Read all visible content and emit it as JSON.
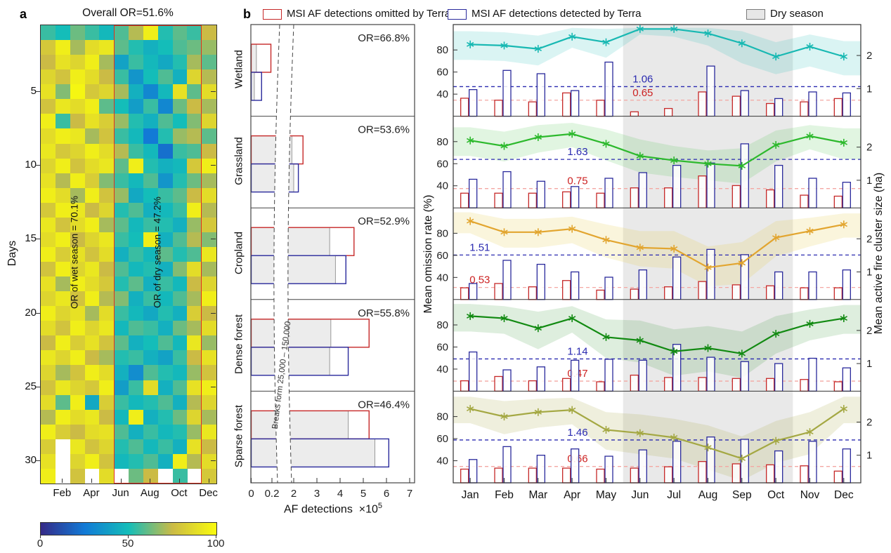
{
  "page": {
    "panel_a_label": "a",
    "panel_b_label": "b"
  },
  "legend": {
    "items": [
      {
        "label": "MSI AF detections omitted by Terra",
        "stroke": "#c62828",
        "fill": "#ffffff"
      },
      {
        "label": "MSI AF detections detected by Terra",
        "stroke": "#2a2a9c",
        "fill": "#ffffff"
      },
      {
        "label": "Dry season",
        "stroke": "#7a7a7a",
        "fill": "#e7e7e7"
      }
    ]
  },
  "chart_data": [
    {
      "id": "panel-a-daily-omission-heatmap",
      "type": "heatmap",
      "title": "Overall OR=51.6%",
      "ylabel": "Days",
      "yticks": [
        5,
        10,
        15,
        20,
        25,
        30
      ],
      "xtick_labels": [
        "Feb",
        "Apr",
        "Jun",
        "Aug",
        "Oct",
        "Dec"
      ],
      "xtick_month_index": [
        1,
        3,
        5,
        7,
        9,
        11
      ],
      "annotations": {
        "wet": "OR of wet season = 70.1%",
        "dry": "OR of dry season = 47.2%"
      },
      "dry_season_box": {
        "start_month": "Jun",
        "end_month": "Nov",
        "start_idx": 5,
        "end_idx": 10,
        "color": "#e0301e"
      },
      "colormap_stops": [
        "#352a87",
        "#127ad6",
        "#14bdb9",
        "#cbbb45",
        "#f9fb0e"
      ],
      "colorbar": {
        "ticks": [
          0,
          50,
          100
        ]
      },
      "values": [
        [
          55,
          50,
          62,
          55,
          48,
          58,
          72,
          95,
          52,
          60,
          55,
          75
        ],
        [
          80,
          95,
          70,
          88,
          92,
          60,
          52,
          45,
          50,
          58,
          62,
          68
        ],
        [
          75,
          90,
          85,
          95,
          70,
          40,
          55,
          48,
          42,
          52,
          70,
          60
        ],
        [
          85,
          78,
          95,
          88,
          75,
          55,
          35,
          50,
          58,
          45,
          85,
          72
        ],
        [
          90,
          65,
          98,
          80,
          85,
          70,
          45,
          30,
          48,
          90,
          60,
          88
        ],
        [
          78,
          92,
          88,
          95,
          60,
          50,
          38,
          55,
          30,
          62,
          75,
          70
        ],
        [
          95,
          55,
          75,
          90,
          82,
          68,
          52,
          45,
          58,
          50,
          65,
          85
        ],
        [
          88,
          95,
          92,
          70,
          78,
          55,
          48,
          25,
          52,
          68,
          72,
          60
        ],
        [
          92,
          80,
          85,
          95,
          88,
          72,
          55,
          48,
          22,
          55,
          58,
          75
        ],
        [
          85,
          95,
          78,
          88,
          92,
          60,
          95,
          52,
          45,
          48,
          80,
          95
        ],
        [
          90,
          72,
          95,
          82,
          65,
          55,
          48,
          58,
          35,
          52,
          62,
          70
        ],
        [
          95,
          88,
          70,
          95,
          78,
          68,
          42,
          50,
          55,
          60,
          75,
          88
        ],
        [
          80,
          95,
          92,
          75,
          85,
          52,
          58,
          45,
          48,
          55,
          95,
          72
        ],
        [
          92,
          78,
          88,
          95,
          70,
          60,
          48,
          55,
          52,
          45,
          68,
          80
        ],
        [
          88,
          95,
          75,
          85,
          92,
          55,
          50,
          95,
          45,
          58,
          72,
          65
        ],
        [
          95,
          82,
          90,
          78,
          88,
          45,
          55,
          48,
          60,
          52,
          58,
          92
        ],
        [
          78,
          95,
          85,
          92,
          75,
          58,
          48,
          52,
          45,
          65,
          88,
          70
        ],
        [
          90,
          70,
          95,
          88,
          80,
          52,
          60,
          45,
          55,
          48,
          75,
          85
        ],
        [
          85,
          92,
          78,
          95,
          72,
          65,
          45,
          55,
          48,
          58,
          70,
          95
        ],
        [
          95,
          85,
          90,
          70,
          88,
          55,
          48,
          42,
          52,
          45,
          82,
          75
        ],
        [
          88,
          78,
          95,
          85,
          92,
          48,
          58,
          55,
          45,
          62,
          70,
          88
        ],
        [
          75,
          95,
          82,
          90,
          78,
          60,
          45,
          50,
          58,
          48,
          92,
          68
        ],
        [
          92,
          85,
          95,
          75,
          70,
          52,
          55,
          45,
          40,
          55,
          75,
          90
        ],
        [
          85,
          70,
          78,
          95,
          88,
          45,
          32,
          58,
          52,
          48,
          68,
          78
        ],
        [
          78,
          92,
          85,
          80,
          95,
          38,
          55,
          88,
          45,
          58,
          90,
          95
        ],
        [
          88,
          60,
          95,
          42,
          82,
          55,
          48,
          52,
          58,
          45,
          72,
          85
        ],
        [
          72,
          95,
          88,
          92,
          75,
          48,
          95,
          45,
          52,
          62,
          85,
          70
        ],
        [
          95,
          82,
          75,
          88,
          90,
          58,
          45,
          55,
          48,
          52,
          68,
          92
        ],
        [
          82,
          null,
          92,
          78,
          85,
          52,
          58,
          48,
          55,
          45,
          90,
          75
        ],
        [
          90,
          null,
          85,
          95,
          78,
          48,
          52,
          58,
          45,
          95,
          72,
          88
        ],
        [
          95,
          null,
          78,
          null,
          88,
          null,
          62,
          75,
          null,
          55,
          null,
          80
        ]
      ]
    },
    {
      "id": "panel-b-af-detections-by-landcover",
      "type": "bar",
      "orientation": "horizontal",
      "categories": [
        "Wetland",
        "Grassland",
        "Cropland",
        "Dense forest",
        "Sparse forest"
      ],
      "or_labels": [
        "OR=66.8%",
        "OR=53.6%",
        "OR=52.9%",
        "OR=55.8%",
        "OR=46.4%"
      ],
      "series": [
        {
          "name": "MSI AF detections omitted by Terra",
          "color": "#c62828",
          "totals_1e5": [
            0.19,
            2.4,
            4.6,
            5.25,
            5.25
          ],
          "dry_season_part_1e5": [
            0.05,
            1.85,
            3.55,
            3.6,
            4.35
          ]
        },
        {
          "name": "MSI AF detections detected by Terra",
          "color": "#2a2a9c",
          "totals_1e5": [
            0.1,
            2.2,
            4.25,
            4.35,
            6.1
          ],
          "dry_season_part_1e5": [
            0.03,
            2.0,
            3.8,
            3.55,
            5.5
          ]
        }
      ],
      "xticks": [
        0,
        0.2,
        2,
        3,
        4,
        5,
        6,
        7
      ],
      "xtick_labels": [
        "0",
        "0.2",
        "2",
        "3",
        "4",
        "5",
        "6",
        "7"
      ],
      "xlabel": "AF detections",
      "x_scale_base": "×10",
      "x_scale_exp": "5",
      "break_label": "Breaks form 25,000 – 150,000"
    },
    {
      "id": "panel-c-monthly-omission-and-cluster-size",
      "type": "line+bar",
      "months": [
        "Jan",
        "Feb",
        "Mar",
        "Apr",
        "May",
        "Jun",
        "Jul",
        "Aug",
        "Sep",
        "Oct",
        "Nov",
        "Dec"
      ],
      "ylabel_left": "Mean omission rate (%)",
      "ylabel_right": "Mean active fire cluster size (ha)",
      "yticks_left": [
        40,
        60,
        80
      ],
      "yticks_right": [
        1,
        2
      ],
      "y_left_range": [
        20,
        103
      ],
      "right_axis_map": {
        "pct_intercept": 15,
        "pct_per_ha": 30
      },
      "dry_season": {
        "label": "Dry season",
        "start_month": "Jun",
        "end_month": "Oct",
        "start_idx": 5,
        "end_idx": 9,
        "fill": "#e9e9e9"
      },
      "bar_colors": {
        "omitted": "#c62828",
        "detected": "#2a2a9c"
      },
      "dashed_line_colors": {
        "detected": "#2a2ab0",
        "omitted": "#f4a7a3"
      },
      "dashed_label_colors": {
        "detected": "#2a2ab0",
        "omitted": "#cc2222"
      },
      "rows": [
        {
          "name": "Wetland",
          "line_color": "#17b8b2",
          "band_color": "rgba(23,184,178,0.16)",
          "omission_pct": [
            85,
            84,
            81,
            92,
            87,
            99,
            99,
            95,
            86,
            74,
            83,
            74
          ],
          "band_upper": [
            97,
            96,
            93,
            100,
            99,
            100,
            100,
            100,
            97,
            87,
            94,
            88
          ],
          "band_lower": [
            71,
            70,
            66,
            82,
            73,
            94,
            92,
            84,
            68,
            58,
            65,
            57
          ],
          "omitted_cluster_ha": [
            0.71,
            0.65,
            0.6,
            0.87,
            0.65,
            0.3,
            0.4,
            0.9,
            0.77,
            0.55,
            0.6,
            0.7
          ],
          "detected_cluster_ha": [
            0.97,
            1.55,
            1.45,
            0.94,
            1.8,
            null,
            null,
            1.68,
            0.94,
            0.7,
            0.9,
            0.87
          ],
          "mean_detected_ha": "1.06",
          "mean_omitted_ha": "0.65",
          "label_x_pct": 44
        },
        {
          "name": "Grassland",
          "line_color": "#2db92d",
          "band_color": "rgba(45,185,45,0.14)",
          "omission_pct": [
            81,
            76,
            84,
            87,
            78,
            67,
            63,
            60,
            58,
            77,
            85,
            79
          ],
          "band_upper": [
            93,
            89,
            95,
            97,
            91,
            82,
            76,
            72,
            74,
            90,
            95,
            92
          ],
          "band_lower": [
            67,
            62,
            70,
            75,
            63,
            52,
            48,
            45,
            42,
            62,
            73,
            64
          ],
          "omitted_cluster_ha": [
            0.61,
            0.61,
            0.61,
            0.65,
            0.61,
            0.77,
            0.77,
            1.13,
            0.84,
            0.71,
            0.55,
            0.52
          ],
          "detected_cluster_ha": [
            1.03,
            1.26,
            0.97,
            0.81,
            1.06,
            1.23,
            1.45,
            1.52,
            2.1,
            1.45,
            1.06,
            0.94
          ],
          "mean_detected_ha": "1.63",
          "mean_omitted_ha": "0.75",
          "label_x_pct": 28
        },
        {
          "name": "Cropland",
          "line_color": "#e2a52f",
          "band_color": "rgba(230,200,60,0.18)",
          "omission_pct": [
            91,
            81,
            81,
            84,
            74,
            67,
            66,
            49,
            53,
            76,
            82,
            88
          ],
          "band_upper": [
            99,
            93,
            93,
            95,
            88,
            82,
            82,
            68,
            72,
            91,
            94,
            98
          ],
          "band_lower": [
            80,
            67,
            67,
            71,
            58,
            50,
            48,
            32,
            34,
            59,
            68,
            76
          ],
          "omitted_cluster_ha": [
            0.52,
            0.65,
            0.55,
            0.74,
            0.45,
            0.48,
            0.55,
            0.71,
            0.61,
            0.58,
            0.52,
            0.52
          ],
          "detected_cluster_ha": [
            0.65,
            1.35,
            1.23,
            1.0,
            0.84,
            1.06,
            1.45,
            1.68,
            1.52,
            1.0,
            1.0,
            1.06
          ],
          "mean_detected_ha": "1.51",
          "mean_omitted_ha": "0.53",
          "label_x_pct": 4
        },
        {
          "name": "Dense forest",
          "line_color": "#128a12",
          "band_color": "rgba(18,138,18,0.14)",
          "omission_pct": [
            88,
            86,
            77,
            86,
            69,
            66,
            56,
            59,
            54,
            72,
            81,
            86
          ],
          "band_upper": [
            99,
            97,
            92,
            97,
            85,
            84,
            76,
            79,
            74,
            88,
            94,
            98
          ],
          "band_lower": [
            74,
            72,
            58,
            73,
            50,
            46,
            34,
            38,
            32,
            54,
            66,
            72
          ],
          "omitted_cluster_ha": [
            0.48,
            0.61,
            0.48,
            0.55,
            0.45,
            0.65,
            0.58,
            0.58,
            0.55,
            0.55,
            0.52,
            0.45
          ],
          "detected_cluster_ha": [
            1.35,
            0.81,
            0.9,
            1.1,
            1.13,
            1.1,
            1.58,
            1.19,
            1.06,
            1.0,
            1.16,
            0.87
          ],
          "mean_detected_ha": "1.14",
          "mean_omitted_ha": "0.47",
          "label_x_pct": 28
        },
        {
          "name": "Sparse forest",
          "line_color": "#a4a843",
          "band_color": "rgba(164,168,67,0.18)",
          "omission_pct": [
            87,
            80,
            84,
            86,
            68,
            65,
            61,
            52,
            42,
            58,
            66,
            87
          ],
          "band_upper": [
            98,
            94,
            96,
            97,
            84,
            82,
            78,
            72,
            62,
            76,
            84,
            98
          ],
          "band_lower": [
            74,
            64,
            70,
            73,
            50,
            46,
            42,
            32,
            22,
            38,
            46,
            74
          ],
          "omitted_cluster_ha": [
            0.58,
            0.61,
            0.61,
            0.61,
            0.58,
            0.61,
            0.65,
            0.81,
            0.74,
            0.71,
            0.68,
            0.52
          ],
          "detected_cluster_ha": [
            0.87,
            1.26,
            1.0,
            1.19,
            0.97,
            1.16,
            1.42,
            1.55,
            1.48,
            1.13,
            1.42,
            1.19
          ],
          "mean_detected_ha": "1.46",
          "mean_omitted_ha": "0.66",
          "label_x_pct": 28
        }
      ]
    }
  ]
}
